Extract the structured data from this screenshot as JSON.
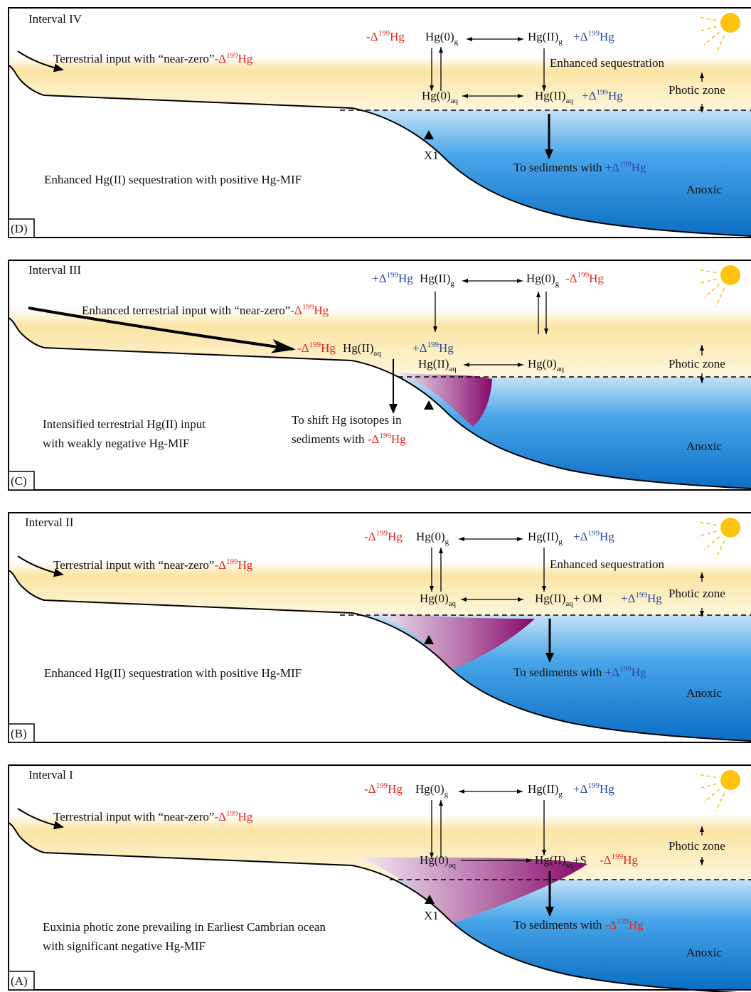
{
  "panels": [
    {
      "tag": "(D)",
      "interval": "Interval IV",
      "input": [
        "Terrestrial input with “near-zero”",
        "-Δ",
        "199",
        "Hg"
      ],
      "delta_hg0_g": [
        "-Δ",
        "199",
        "Hg"
      ],
      "hg0_g": [
        "Hg(0)",
        "g"
      ],
      "hg2_g": [
        "Hg(II)",
        "g"
      ],
      "delta_hg2_g": [
        "+Δ",
        "199",
        "Hg"
      ],
      "sequestration": "Enhanced sequestration",
      "hg0_aq": [
        "Hg(0)",
        "aq"
      ],
      "hg2_aq": [
        "Hg(II)",
        "aq"
      ],
      "delta_hg2_aq": [
        "+Δ",
        "199",
        "Hg"
      ],
      "photic": "Photic zone",
      "marker": "X1",
      "sediments": [
        "To sediments with ",
        "+Δ",
        "199",
        "Hg"
      ],
      "anoxic": "Anoxic",
      "summary": [
        "Enhanced Hg(II) sequestration with positive Hg-MIF"
      ]
    },
    {
      "tag": "(C)",
      "interval": "Interval III",
      "delta_hg2_g": [
        "+Δ",
        "199",
        "Hg"
      ],
      "hg2_g": [
        "Hg(II)",
        "g"
      ],
      "hg0_g": [
        "Hg(0)",
        "g"
      ],
      "delta_hg0_g": [
        "-Δ",
        "199",
        "Hg"
      ],
      "input": [
        "Enhanced terrestrial input with “near-zero”",
        "-Δ",
        "199",
        "Hg"
      ],
      "delta_runoff": [
        "-Δ",
        "199",
        "Hg"
      ],
      "hg2_aq_runoff": [
        "Hg(II)",
        "aq"
      ],
      "delta_hg2_aq": [
        "+Δ",
        "199",
        "Hg"
      ],
      "hg2_aq": [
        "Hg(II)",
        "aq"
      ],
      "hg0_aq": [
        "Hg(0)",
        "aq"
      ],
      "photic": "Photic zone",
      "shift": [
        "To shift Hg isotopes in"
      ],
      "sediments": [
        "sediments with ",
        "-Δ",
        "199",
        "Hg"
      ],
      "summary": [
        "Intensified terrestrial Hg(II) input",
        "with weakly negative Hg-MIF"
      ],
      "anoxic": "Anoxic"
    },
    {
      "tag": "(B)",
      "interval": "Interval II",
      "input": [
        "Terrestrial input with “near-zero”",
        "-Δ",
        "199",
        "Hg"
      ],
      "delta_hg0_g": [
        "-Δ",
        "199",
        "Hg"
      ],
      "hg0_g": [
        "Hg(0)",
        "g"
      ],
      "hg2_g": [
        "Hg(II)",
        "g"
      ],
      "delta_hg2_g": [
        "+Δ",
        "199",
        "Hg"
      ],
      "sequestration": "Enhanced sequestration",
      "hg0_aq": [
        "Hg(0)",
        "aq"
      ],
      "hg2_aq": [
        "Hg(II)",
        "aq",
        "+ OM"
      ],
      "delta_hg2_aq": [
        "+Δ",
        "199",
        "Hg"
      ],
      "photic": "Photic zone",
      "sediments": [
        "To sediments with ",
        "+Δ",
        "199",
        "Hg"
      ],
      "anoxic": "Anoxic",
      "summary": [
        "Enhanced Hg(II) sequestration with positive Hg-MIF"
      ]
    },
    {
      "tag": "(A)",
      "interval": "Interval I",
      "input": [
        "Terrestrial input with “near-zero”",
        "-Δ",
        "199",
        "Hg"
      ],
      "delta_hg0_g": [
        "-Δ",
        "199",
        "Hg"
      ],
      "hg0_g": [
        "Hg(0)",
        "g"
      ],
      "hg2_g": [
        "Hg(II)",
        "g"
      ],
      "delta_hg2_g": [
        "+Δ",
        "199",
        "Hg"
      ],
      "hg0_aq": [
        "Hg(0)",
        "aq"
      ],
      "hg2_aq": [
        "Hg(II)",
        "aq",
        "+S"
      ],
      "delta_hg2_aq": [
        "-Δ",
        "199",
        "Hg"
      ],
      "photic": "Photic zone",
      "marker": "X1",
      "sediments": [
        "To sediments with ",
        "-Δ",
        "199",
        "Hg"
      ],
      "anoxic": "Anoxic",
      "summary": [
        "Euxinia photic zone prevailing in Earliest Cambrian ocean",
        "with significant negative Hg-MIF"
      ]
    }
  ]
}
